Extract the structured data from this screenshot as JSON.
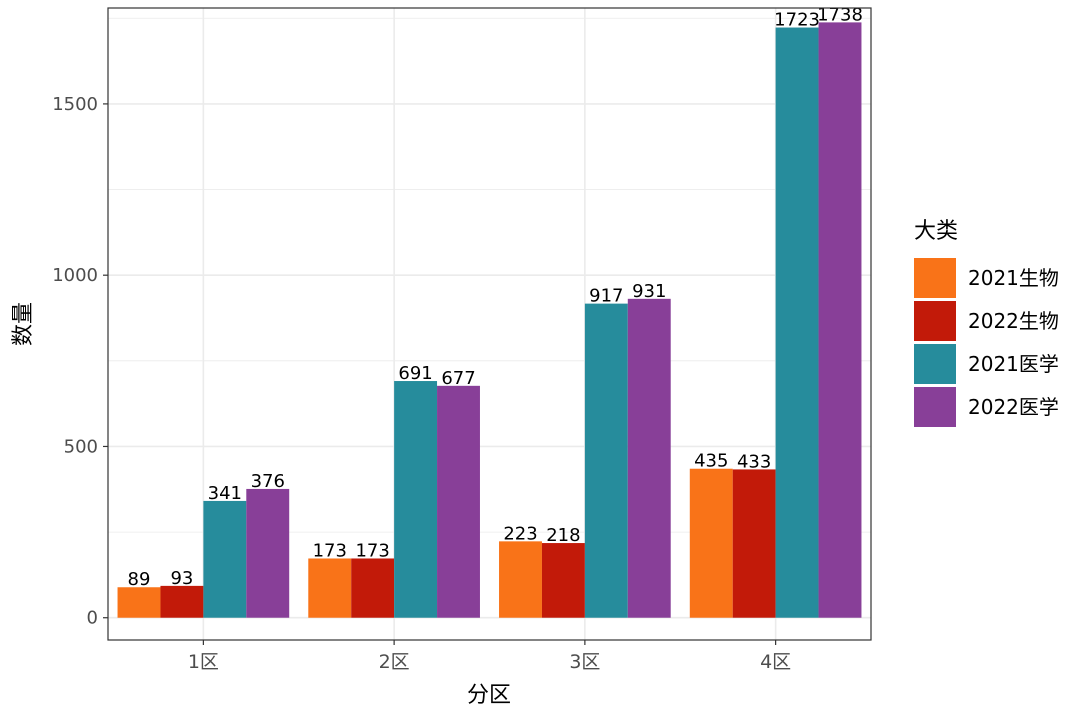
{
  "chart_data": {
    "type": "bar",
    "xlabel": "分区",
    "ylabel": "数量",
    "categories": [
      "1区",
      "2区",
      "3区",
      "4区"
    ],
    "ylim": [
      -65,
      1780
    ],
    "yticks": [
      0,
      500,
      1000,
      1500
    ],
    "grid": true,
    "legend": {
      "title": "大类",
      "position": "right"
    },
    "series": [
      {
        "name": "2021生物",
        "color": "#F97318",
        "values": [
          89,
          173,
          223,
          435
        ]
      },
      {
        "name": "2022生物",
        "color": "#C21A09",
        "values": [
          93,
          173,
          218,
          433
        ]
      },
      {
        "name": "2021医学",
        "color": "#268C9C",
        "values": [
          341,
          691,
          917,
          1723
        ]
      },
      {
        "name": "2022医学",
        "color": "#883F98",
        "values": [
          376,
          677,
          931,
          1738
        ]
      }
    ]
  }
}
